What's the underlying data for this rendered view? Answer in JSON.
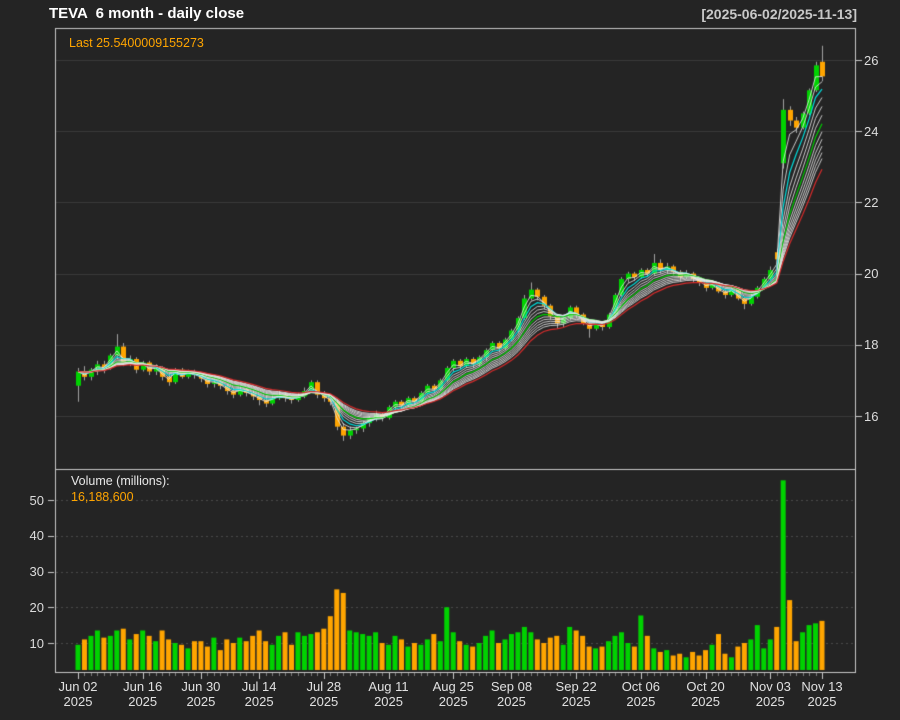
{
  "header": {
    "title": "TEVA  6 month - daily close",
    "date_range": "[2025-06-02/2025-11-13]"
  },
  "price_panel": {
    "last_label": "Last 25.5400009155273",
    "y_ticks": [
      16,
      18,
      20,
      22,
      24,
      26
    ]
  },
  "volume_panel": {
    "label": "Volume (millions):",
    "value": "16,188,600",
    "y_ticks": [
      10,
      20,
      30,
      40,
      50
    ]
  },
  "x_axis": {
    "labels": [
      {
        "label": "Jun 02",
        "year": "2025",
        "i": 0
      },
      {
        "label": "Jun 16",
        "year": "2025",
        "i": 10
      },
      {
        "label": "Jun 30",
        "year": "2025",
        "i": 19
      },
      {
        "label": "Jul 14",
        "year": "2025",
        "i": 28
      },
      {
        "label": "Jul 28",
        "year": "2025",
        "i": 38
      },
      {
        "label": "Aug 11",
        "year": "2025",
        "i": 48
      },
      {
        "label": "Aug 25",
        "year": "2025",
        "i": 58
      },
      {
        "label": "Sep 08",
        "year": "2025",
        "i": 67
      },
      {
        "label": "Sep 22",
        "year": "2025",
        "i": 77
      },
      {
        "label": "Oct 06",
        "year": "2025",
        "i": 87
      },
      {
        "label": "Oct 20",
        "year": "2025",
        "i": 97
      },
      {
        "label": "Nov 03",
        "year": "2025",
        "i": 107
      },
      {
        "label": "Nov 13",
        "year": "2025",
        "i": 115
      }
    ]
  },
  "colors": {
    "background": "#242424",
    "up": "#00d200",
    "down": "#ffa500",
    "wick": "#a0a0a0",
    "border": "#c8c8c8",
    "grid_price": "#3a3a3a",
    "grid_volume": "#484848",
    "tick_minor": "#7d7d7d",
    "ma_default": "#eaeaea",
    "ma_cyan": "#00dcdc",
    "ma_green": "#00cc00",
    "ma_red": "#d62b2b",
    "text_primary": "#ffffff",
    "text_secondary": "#c8c8c8",
    "accent_orange": "#ffa500"
  },
  "chart_data": {
    "type": "candlestick",
    "symbol": "TEVA",
    "period": "6 month - daily close",
    "last_close": "25.5400009155273",
    "last_volume": 16188600,
    "price_axis_ticks": [
      16,
      18,
      20,
      22,
      24,
      26
    ],
    "volume_axis_ticks_millions": [
      10,
      20,
      30,
      40,
      50
    ],
    "ma_ribbon": {
      "type": "ema",
      "periods": [
        2,
        3,
        4,
        5,
        6,
        7,
        8,
        9,
        10,
        11,
        12,
        13,
        15
      ],
      "highlight": {
        "4": "cyan",
        "8": "green",
        "15": "red"
      }
    },
    "dates": [
      "2025-06-02",
      "2025-06-03",
      "2025-06-04",
      "2025-06-05",
      "2025-06-06",
      "2025-06-09",
      "2025-06-10",
      "2025-06-11",
      "2025-06-12",
      "2025-06-13",
      "2025-06-16",
      "2025-06-17",
      "2025-06-18",
      "2025-06-20",
      "2025-06-23",
      "2025-06-24",
      "2025-06-25",
      "2025-06-26",
      "2025-06-27",
      "2025-06-30",
      "2025-07-01",
      "2025-07-02",
      "2025-07-03",
      "2025-07-07",
      "2025-07-08",
      "2025-07-09",
      "2025-07-10",
      "2025-07-11",
      "2025-07-14",
      "2025-07-15",
      "2025-07-16",
      "2025-07-17",
      "2025-07-18",
      "2025-07-21",
      "2025-07-22",
      "2025-07-23",
      "2025-07-24",
      "2025-07-25",
      "2025-07-28",
      "2025-07-29",
      "2025-07-30",
      "2025-07-31",
      "2025-08-01",
      "2025-08-04",
      "2025-08-05",
      "2025-08-06",
      "2025-08-07",
      "2025-08-08",
      "2025-08-11",
      "2025-08-12",
      "2025-08-13",
      "2025-08-14",
      "2025-08-15",
      "2025-08-18",
      "2025-08-19",
      "2025-08-20",
      "2025-08-21",
      "2025-08-22",
      "2025-08-25",
      "2025-08-26",
      "2025-08-27",
      "2025-08-28",
      "2025-08-29",
      "2025-09-02",
      "2025-09-03",
      "2025-09-04",
      "2025-09-05",
      "2025-09-08",
      "2025-09-09",
      "2025-09-10",
      "2025-09-11",
      "2025-09-12",
      "2025-09-15",
      "2025-09-16",
      "2025-09-17",
      "2025-09-18",
      "2025-09-19",
      "2025-09-22",
      "2025-09-23",
      "2025-09-24",
      "2025-09-25",
      "2025-09-26",
      "2025-09-29",
      "2025-09-30",
      "2025-10-01",
      "2025-10-02",
      "2025-10-03",
      "2025-10-06",
      "2025-10-07",
      "2025-10-08",
      "2025-10-09",
      "2025-10-10",
      "2025-10-13",
      "2025-10-14",
      "2025-10-15",
      "2025-10-16",
      "2025-10-17",
      "2025-10-20",
      "2025-10-21",
      "2025-10-22",
      "2025-10-23",
      "2025-10-24",
      "2025-10-27",
      "2025-10-28",
      "2025-10-29",
      "2025-10-30",
      "2025-10-31",
      "2025-11-03",
      "2025-11-04",
      "2025-11-05",
      "2025-11-06",
      "2025-11-07",
      "2025-11-10",
      "2025-11-11",
      "2025-11-12",
      "2025-11-13"
    ],
    "open": [
      16.85,
      17.25,
      17.1,
      17.3,
      17.45,
      17.35,
      17.7,
      17.95,
      17.5,
      17.6,
      17.3,
      17.5,
      17.25,
      17.35,
      17.1,
      16.95,
      17.3,
      17.1,
      17.25,
      17.15,
      17.05,
      16.9,
      16.95,
      16.85,
      16.7,
      16.6,
      16.75,
      16.65,
      16.55,
      16.45,
      16.35,
      16.5,
      16.6,
      16.5,
      16.45,
      16.55,
      16.7,
      16.95,
      16.6,
      16.5,
      16.4,
      15.7,
      15.45,
      15.6,
      15.65,
      15.8,
      15.95,
      16.05,
      15.95,
      16.25,
      16.4,
      16.3,
      16.5,
      16.4,
      16.65,
      16.85,
      16.75,
      17.0,
      17.35,
      17.55,
      17.4,
      17.6,
      17.45,
      17.65,
      17.85,
      18.05,
      17.9,
      18.15,
      18.4,
      18.75,
      19.3,
      19.55,
      19.35,
      19.1,
      18.8,
      18.6,
      18.75,
      19.05,
      18.85,
      18.6,
      18.45,
      18.6,
      18.5,
      18.85,
      19.4,
      19.85,
      20.0,
      19.9,
      20.1,
      20.0,
      20.3,
      20.1,
      20.2,
      20.05,
      19.9,
      20.0,
      19.85,
      19.75,
      19.6,
      19.7,
      19.5,
      19.4,
      19.55,
      19.3,
      19.15,
      19.35,
      19.6,
      19.85,
      20.6,
      23.1,
      24.6,
      24.3,
      24.1,
      24.5,
      25.15,
      25.95
    ],
    "high": [
      17.35,
      17.4,
      17.35,
      17.55,
      17.55,
      17.75,
      18.3,
      18.05,
      17.7,
      17.65,
      17.55,
      17.55,
      17.45,
      17.4,
      17.2,
      17.35,
      17.35,
      17.3,
      17.3,
      17.2,
      17.1,
      17.05,
      17.0,
      16.9,
      16.8,
      16.85,
      16.8,
      16.7,
      16.6,
      16.55,
      16.6,
      16.7,
      16.65,
      16.6,
      16.65,
      16.8,
      17.0,
      17.0,
      16.7,
      16.55,
      16.45,
      15.8,
      15.7,
      15.7,
      15.85,
      16.0,
      16.15,
      16.1,
      16.3,
      16.45,
      16.45,
      16.55,
      16.55,
      16.7,
      16.9,
      16.9,
      17.05,
      17.4,
      17.6,
      17.6,
      17.65,
      17.65,
      17.7,
      17.9,
      18.1,
      18.1,
      18.2,
      18.45,
      18.8,
      19.4,
      19.75,
      19.6,
      19.4,
      19.15,
      18.85,
      18.85,
      19.1,
      19.1,
      18.9,
      18.65,
      18.7,
      18.65,
      18.9,
      19.45,
      19.9,
      20.05,
      20.05,
      20.15,
      20.15,
      20.55,
      20.4,
      20.3,
      20.25,
      20.1,
      20.1,
      20.05,
      19.9,
      19.8,
      19.8,
      19.75,
      19.55,
      19.65,
      19.6,
      19.35,
      19.45,
      19.65,
      19.9,
      20.2,
      20.7,
      24.9,
      24.7,
      24.4,
      24.55,
      25.2,
      25.95,
      26.4
    ],
    "low": [
      16.4,
      17.0,
      17.0,
      17.15,
      17.2,
      17.3,
      17.6,
      17.4,
      17.4,
      17.2,
      17.25,
      17.15,
      17.15,
      17.0,
      16.85,
      16.9,
      17.05,
      17.05,
      17.05,
      16.95,
      16.8,
      16.8,
      16.75,
      16.6,
      16.5,
      16.55,
      16.55,
      16.45,
      16.3,
      16.25,
      16.3,
      16.45,
      16.4,
      16.35,
      16.4,
      16.5,
      16.65,
      16.5,
      16.4,
      16.3,
      15.6,
      15.3,
      15.35,
      15.5,
      15.55,
      15.7,
      15.85,
      15.85,
      15.9,
      16.15,
      16.2,
      16.25,
      16.3,
      16.35,
      16.6,
      16.65,
      16.7,
      16.95,
      17.25,
      17.3,
      17.35,
      17.35,
      17.4,
      17.55,
      17.8,
      17.8,
      17.85,
      18.1,
      18.35,
      18.7,
      19.25,
      19.25,
      19.0,
      18.7,
      18.45,
      18.5,
      18.7,
      18.75,
      18.55,
      18.2,
      18.4,
      18.4,
      18.45,
      18.8,
      19.35,
      19.75,
      19.8,
      19.85,
      19.9,
      19.95,
      20.0,
      20.0,
      19.95,
      19.8,
      19.85,
      19.75,
      19.65,
      19.5,
      19.55,
      19.45,
      19.3,
      19.35,
      19.25,
      19.0,
      19.1,
      19.3,
      19.55,
      19.8,
      20.3,
      22.95,
      24.15,
      23.95,
      24.05,
      24.45,
      25.1,
      25.4
    ],
    "close": [
      17.25,
      17.1,
      17.3,
      17.45,
      17.35,
      17.7,
      17.95,
      17.5,
      17.6,
      17.3,
      17.5,
      17.25,
      17.35,
      17.1,
      16.95,
      17.3,
      17.1,
      17.25,
      17.15,
      17.05,
      16.9,
      16.95,
      16.85,
      16.7,
      16.6,
      16.75,
      16.65,
      16.55,
      16.45,
      16.35,
      16.5,
      16.6,
      16.5,
      16.45,
      16.55,
      16.7,
      16.95,
      16.6,
      16.5,
      16.4,
      15.7,
      15.45,
      15.6,
      15.65,
      15.8,
      15.95,
      16.05,
      15.95,
      16.25,
      16.4,
      16.3,
      16.5,
      16.4,
      16.65,
      16.85,
      16.75,
      17.0,
      17.35,
      17.55,
      17.4,
      17.6,
      17.45,
      17.65,
      17.85,
      18.05,
      17.9,
      18.15,
      18.4,
      18.75,
      19.3,
      19.55,
      19.35,
      19.1,
      18.8,
      18.6,
      18.75,
      19.05,
      18.85,
      18.6,
      18.45,
      18.6,
      18.5,
      18.85,
      19.4,
      19.85,
      20.0,
      19.9,
      20.1,
      20.0,
      20.3,
      20.1,
      20.2,
      20.05,
      19.9,
      20.0,
      19.85,
      19.75,
      19.6,
      19.7,
      19.5,
      19.4,
      19.55,
      19.3,
      19.15,
      19.35,
      19.6,
      19.85,
      20.1,
      20.4,
      24.6,
      24.3,
      24.1,
      24.5,
      25.15,
      25.85,
      25.54
    ],
    "volume_millions": [
      9.5,
      11.0,
      12.0,
      13.5,
      11.5,
      12.0,
      13.5,
      14.0,
      11.0,
      12.5,
      13.5,
      12.0,
      10.5,
      13.5,
      11.0,
      10.0,
      9.5,
      8.5,
      10.5,
      10.5,
      9.0,
      11.5,
      8.0,
      11.0,
      10.0,
      11.5,
      10.5,
      12.0,
      13.5,
      10.5,
      9.5,
      12.0,
      13.0,
      9.5,
      13.0,
      12.0,
      12.5,
      13.0,
      14.0,
      17.5,
      25.0,
      24.0,
      13.5,
      13.0,
      12.5,
      12.0,
      13.0,
      10.0,
      9.5,
      12.0,
      11.0,
      9.0,
      10.0,
      9.5,
      11.0,
      12.5,
      10.5,
      20.0,
      13.0,
      10.5,
      9.5,
      9.0,
      10.0,
      12.0,
      13.5,
      10.0,
      11.0,
      12.5,
      13.0,
      14.5,
      13.0,
      11.0,
      10.0,
      11.5,
      12.0,
      9.5,
      14.5,
      13.5,
      12.0,
      9.0,
      8.5,
      9.0,
      10.5,
      12.0,
      13.0,
      10.0,
      9.0,
      17.7,
      12.0,
      8.5,
      7.5,
      8.0,
      6.5,
      7.0,
      6.0,
      7.5,
      6.5,
      8.0,
      9.5,
      12.5,
      7.0,
      6.0,
      9.0,
      10.0,
      11.0,
      15.0,
      8.5,
      11.0,
      14.5,
      55.5,
      22.0,
      10.5,
      13.0,
      15.0,
      15.5,
      16.19
    ]
  }
}
